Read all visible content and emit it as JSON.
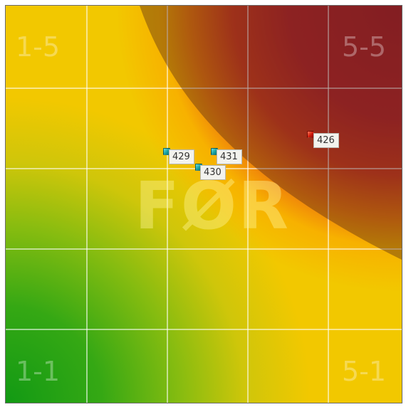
{
  "colors": {
    "high": "#a81f2a",
    "mid": "#f2c800",
    "low": "#129a14",
    "marker_teal": "#18a0a0",
    "marker_red": "#d01a0a"
  },
  "corners": {
    "top_left": "1-5",
    "top_right": "5-5",
    "bottom_left": "1-1",
    "bottom_right": "5-1"
  },
  "watermark": "FØR",
  "markers": [
    {
      "id": "429",
      "color": "teal"
    },
    {
      "id": "431",
      "color": "teal"
    },
    {
      "id": "430",
      "color": "teal"
    },
    {
      "id": "426",
      "color": "red"
    }
  ]
}
